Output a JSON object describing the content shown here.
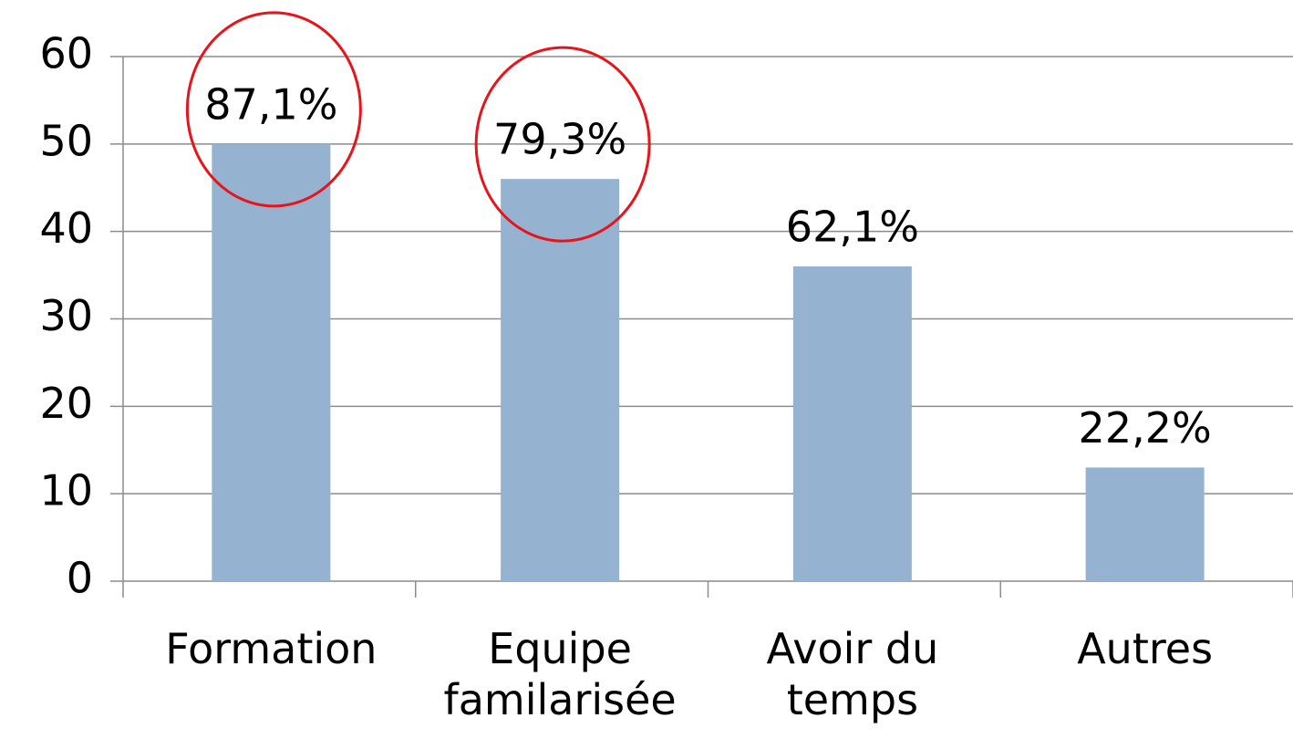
{
  "chart_data": {
    "type": "bar",
    "categories": [
      "Formation",
      "Equipe familarisée",
      "Avoir du temps",
      "Autres"
    ],
    "values": [
      50,
      46,
      36,
      13
    ],
    "annotations": [
      "87,1%",
      "79,3%",
      "62,1%",
      "22,2%"
    ],
    "highlighted": [
      true,
      true,
      false,
      false
    ],
    "highlight_color": "#e8141b",
    "color": "#95b3d0",
    "ylim": [
      0,
      60
    ],
    "yticks": [
      0,
      10,
      20,
      30,
      40,
      50,
      60
    ],
    "grid": true
  }
}
